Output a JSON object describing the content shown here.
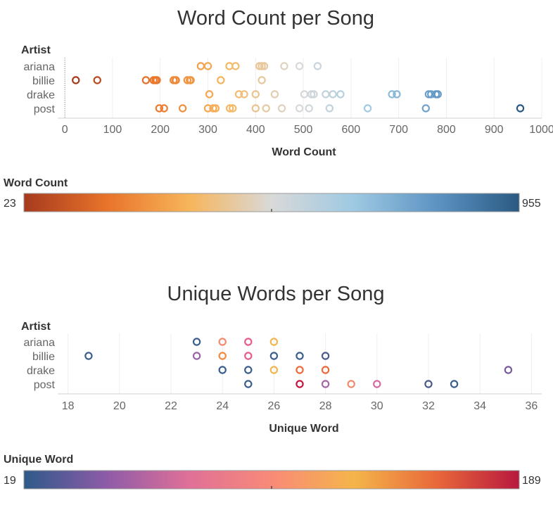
{
  "chart_data": [
    {
      "type": "scatter",
      "title": "Word Count per Song",
      "row_header": "Artist",
      "rows": [
        "ariana",
        "billie",
        "drake",
        "post"
      ],
      "xlabel": "Word Count",
      "xlim": [
        -15,
        1000
      ],
      "xticks": [
        0,
        100,
        200,
        300,
        400,
        500,
        600,
        700,
        800,
        900,
        1000
      ],
      "points": {
        "ariana": [
          285,
          300,
          345,
          358,
          408,
          413,
          418,
          460,
          492,
          530
        ],
        "billie": [
          23,
          68,
          170,
          186,
          190,
          193,
          228,
          232,
          233,
          257,
          262,
          264,
          327,
          413
        ],
        "drake": [
          303,
          365,
          376,
          400,
          440,
          502,
          517,
          522,
          547,
          562,
          578,
          686,
          696,
          763,
          768,
          778,
          782
        ],
        "post": [
          198,
          208,
          247,
          300,
          311,
          316,
          346,
          352,
          400,
          422,
          455,
          492,
          512,
          555,
          635,
          757,
          955
        ]
      },
      "legend": {
        "title": "Word Count",
        "min": 23,
        "max": 955,
        "placement": "bottom"
      },
      "colors": [
        "#a63a1e",
        "#e8732a",
        "#f7b55a",
        "#d9d9d9",
        "#9ec9e2",
        "#5d93c3",
        "#2a5a83"
      ]
    },
    {
      "type": "scatter",
      "title": "Unique Words per Song",
      "row_header": "Artist",
      "rows": [
        "ariana",
        "billie",
        "drake",
        "post"
      ],
      "xlabel": "Unique Word",
      "xlim": [
        17.6,
        36.4
      ],
      "xticks": [
        18,
        20,
        22,
        24,
        26,
        28,
        30,
        32,
        34,
        36
      ],
      "points": {
        "ariana": [
          23,
          24,
          25,
          26
        ],
        "billie": [
          18.8,
          23,
          24,
          25,
          26,
          27,
          28
        ],
        "drake": [
          24,
          25,
          26,
          27,
          28,
          35.1
        ],
        "post": [
          25,
          27,
          28,
          29,
          30,
          32,
          33
        ]
      },
      "point_colors": {
        "ariana": [
          "#3a5f8f",
          "#f28a6e",
          "#e65c88",
          "#f5b44a"
        ],
        "billie": [
          "#3a5f8f",
          "#9b63a6",
          "#f28a40",
          "#e65c88",
          "#3a5f8f",
          "#3a5f8f",
          "#4a5a8f"
        ],
        "drake": [
          "#3a5f8f",
          "#3a5f8f",
          "#f5b44a",
          "#ec6a3c",
          "#ec6a3c",
          "#7a5a9e"
        ],
        "post": [
          "#3a5f8f",
          "#c0183f",
          "#a665a8",
          "#f28a6e",
          "#d66aa0",
          "#4a5a8f",
          "#3a5f8f"
        ]
      },
      "legend": {
        "title": "Unique Word",
        "min": 19,
        "max": 189,
        "placement": "bottom"
      },
      "colors": [
        "#2e5a8a",
        "#8e5ba8",
        "#e07098",
        "#f88a78",
        "#f5b54a",
        "#e8683a",
        "#b8183e"
      ]
    }
  ]
}
